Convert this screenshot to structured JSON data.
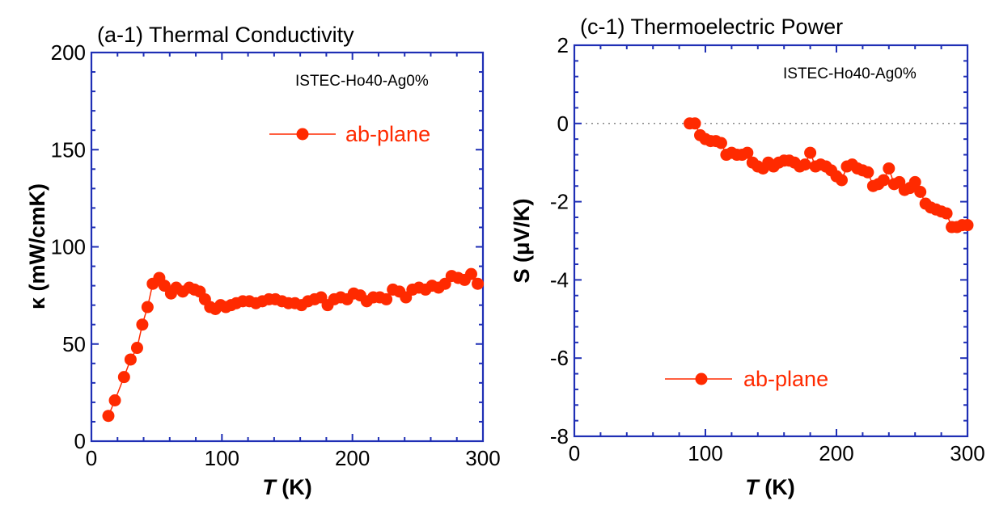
{
  "chart_data": [
    {
      "type": "line",
      "title": "(a-1) Thermal Conductivity",
      "sample": "ISTEC-Ho40-Ag0%",
      "xlabel_italic": "T",
      "xlabel_rest": " (K)",
      "ylabel": "κ (mW/cmK)",
      "xlim": [
        0,
        300
      ],
      "ylim": [
        0,
        200
      ],
      "xticks": [
        0,
        100,
        200,
        300
      ],
      "yticks": [
        0,
        50,
        100,
        150,
        200
      ],
      "series": [
        {
          "name": "ab-plane",
          "x": [
            13,
            18,
            25,
            30,
            35,
            39,
            43,
            47,
            52,
            56,
            61,
            65,
            70,
            75,
            79,
            83,
            87,
            91,
            95,
            99,
            103,
            107,
            111,
            116,
            121,
            126,
            131,
            136,
            141,
            146,
            151,
            156,
            161,
            166,
            171,
            176,
            181,
            186,
            191,
            196,
            201,
            206,
            211,
            216,
            221,
            226,
            231,
            236,
            241,
            246,
            251,
            256,
            261,
            266,
            271,
            276,
            281,
            286,
            291,
            296
          ],
          "values": [
            13,
            21,
            33,
            42,
            48,
            60,
            69,
            81,
            84,
            80,
            76,
            79,
            77,
            79,
            78,
            77,
            73,
            69,
            68,
            70,
            69,
            70,
            71,
            72,
            72,
            71,
            72,
            73,
            73,
            72,
            71,
            71,
            70,
            72,
            73,
            74,
            70,
            73,
            74,
            73,
            76,
            75,
            72,
            74,
            74,
            73,
            78,
            77,
            74,
            78,
            79,
            78,
            80,
            79,
            81,
            85,
            84,
            83,
            86,
            81
          ]
        }
      ]
    },
    {
      "type": "line",
      "title": "(c-1) Thermoelectric Power",
      "sample": "ISTEC-Ho40-Ag0%",
      "xlabel_italic": "T",
      "xlabel_rest": " (K)",
      "ylabel": "S (μV/K)",
      "xlim": [
        0,
        300
      ],
      "ylim": [
        -8,
        2
      ],
      "xticks": [
        0,
        100,
        200,
        300
      ],
      "yticks": [
        -8,
        -6,
        -4,
        -2,
        0,
        2
      ],
      "series": [
        {
          "name": "ab-plane",
          "x": [
            88,
            92,
            96,
            100,
            104,
            108,
            112,
            116,
            120,
            124,
            128,
            132,
            136,
            140,
            144,
            148,
            152,
            156,
            160,
            164,
            168,
            172,
            176,
            180,
            184,
            188,
            192,
            196,
            200,
            204,
            208,
            212,
            216,
            220,
            224,
            228,
            232,
            236,
            240,
            244,
            248,
            252,
            256,
            260,
            264,
            268,
            272,
            276,
            280,
            284,
            288,
            292,
            296,
            300
          ],
          "values": [
            0,
            0,
            -0.3,
            -0.4,
            -0.45,
            -0.45,
            -0.5,
            -0.8,
            -0.75,
            -0.8,
            -0.8,
            -0.75,
            -1.0,
            -1.1,
            -1.15,
            -1.0,
            -1.1,
            -1.0,
            -0.95,
            -0.95,
            -1.0,
            -1.1,
            -1.05,
            -0.75,
            -1.1,
            -1.05,
            -1.1,
            -1.2,
            -1.35,
            -1.45,
            -1.1,
            -1.05,
            -1.15,
            -1.2,
            -1.25,
            -1.6,
            -1.55,
            -1.45,
            -1.15,
            -1.55,
            -1.5,
            -1.7,
            -1.65,
            -1.5,
            -1.75,
            -2.05,
            -2.15,
            -2.2,
            -2.25,
            -2.3,
            -2.65,
            -2.65,
            -2.6,
            -2.6
          ]
        }
      ]
    }
  ]
}
